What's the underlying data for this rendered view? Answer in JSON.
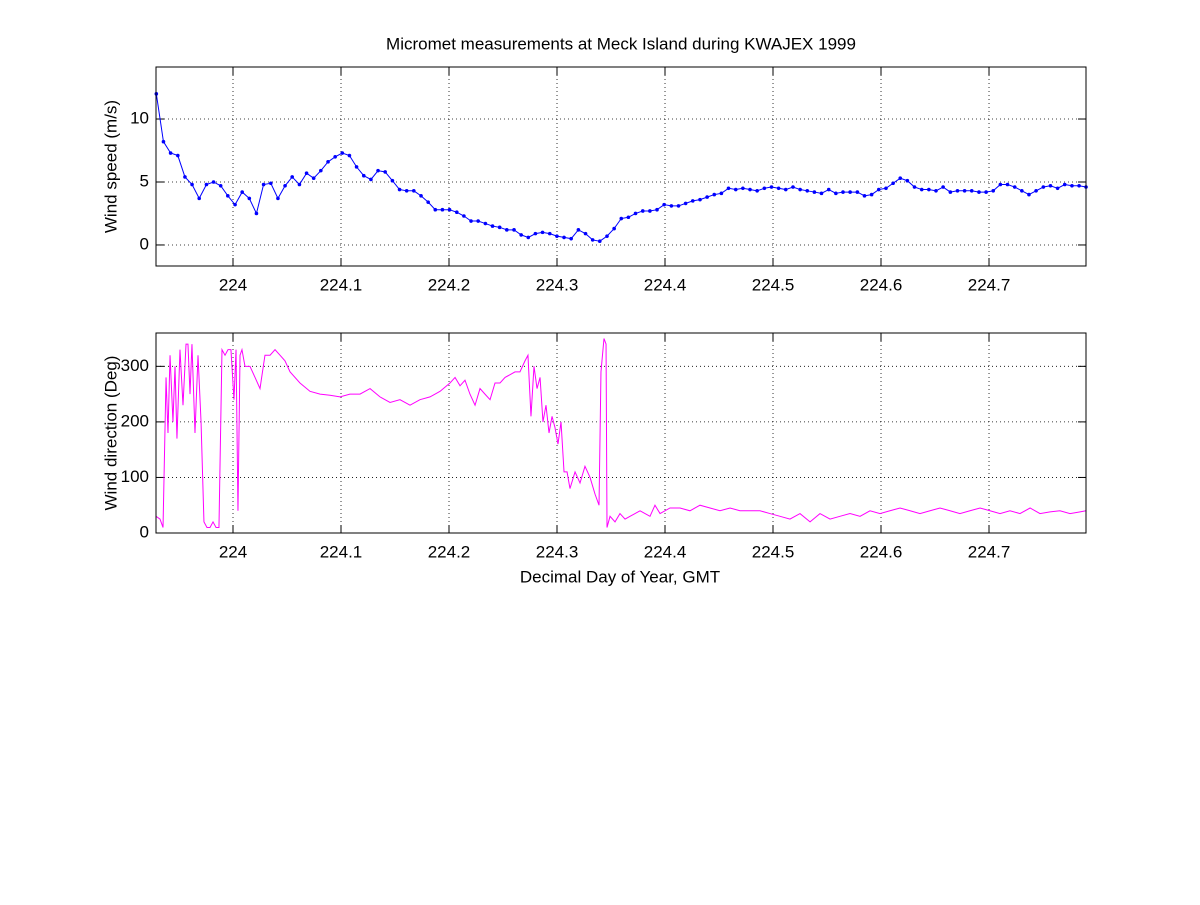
{
  "chart_data": [
    {
      "type": "line",
      "title": "Micromet measurements at Meck Island during KWAJEX 1999",
      "ylabel": "Wind speed (m/s)",
      "x": [
        223.929,
        223.9356,
        223.9422,
        223.9489,
        223.9555,
        223.9621,
        223.9687,
        223.9754,
        223.982,
        223.9886,
        223.9952,
        224.0019,
        224.0085,
        224.0151,
        224.0217,
        224.0283,
        224.035,
        224.0416,
        224.0482,
        224.0548,
        224.0615,
        224.0681,
        224.0747,
        224.0813,
        224.088,
        224.0946,
        224.1012,
        224.1078,
        224.1144,
        224.1211,
        224.1277,
        224.1343,
        224.1409,
        224.1476,
        224.1542,
        224.1608,
        224.1674,
        224.1741,
        224.1807,
        224.1873,
        224.1939,
        224.2005,
        224.2072,
        224.2138,
        224.2204,
        224.227,
        224.2337,
        224.2403,
        224.2469,
        224.2535,
        224.2602,
        224.2668,
        224.2734,
        224.28,
        224.2866,
        224.2933,
        224.2999,
        224.3065,
        224.3131,
        224.3198,
        224.3264,
        224.333,
        224.3396,
        224.3463,
        224.3529,
        224.3595,
        224.3661,
        224.3727,
        224.3794,
        224.386,
        224.3926,
        224.3992,
        224.4059,
        224.4125,
        224.4191,
        224.4257,
        224.4324,
        224.439,
        224.4456,
        224.4522,
        224.4588,
        224.4655,
        224.4721,
        224.4787,
        224.4853,
        224.492,
        224.4986,
        224.5052,
        224.5118,
        224.5185,
        224.5251,
        224.5317,
        224.5383,
        224.5449,
        224.5516,
        224.5582,
        224.5648,
        224.5714,
        224.5781,
        224.5847,
        224.5913,
        224.5979,
        224.6046,
        224.6112,
        224.6178,
        224.6244,
        224.631,
        224.6377,
        224.6443,
        224.6509,
        224.6575,
        224.6642,
        224.6708,
        224.6774,
        224.684,
        224.6907,
        224.6973,
        224.7039,
        224.7105,
        224.7171,
        224.7238,
        224.7304,
        224.737,
        224.7436,
        224.7503,
        224.7569,
        224.7635,
        224.7701,
        224.7768,
        224.7834,
        224.7898
      ],
      "values": [
        12.0,
        8.2,
        7.3,
        7.1,
        5.4,
        4.8,
        3.7,
        4.8,
        5.0,
        4.7,
        3.9,
        3.2,
        4.2,
        3.7,
        2.5,
        4.8,
        4.9,
        3.7,
        4.7,
        5.4,
        4.8,
        5.7,
        5.3,
        5.9,
        6.6,
        7.0,
        7.3,
        7.1,
        6.2,
        5.5,
        5.2,
        5.9,
        5.8,
        5.1,
        4.4,
        4.3,
        4.3,
        3.9,
        3.4,
        2.8,
        2.8,
        2.8,
        2.6,
        2.3,
        1.9,
        1.9,
        1.7,
        1.5,
        1.4,
        1.2,
        1.2,
        0.8,
        0.6,
        0.9,
        1.0,
        0.9,
        0.7,
        0.6,
        0.5,
        1.2,
        0.9,
        0.4,
        0.3,
        0.7,
        1.3,
        2.1,
        2.2,
        2.5,
        2.7,
        2.7,
        2.8,
        3.2,
        3.1,
        3.1,
        3.3,
        3.5,
        3.6,
        3.8,
        4.0,
        4.1,
        4.5,
        4.4,
        4.5,
        4.4,
        4.3,
        4.5,
        4.6,
        4.5,
        4.4,
        4.6,
        4.4,
        4.3,
        4.2,
        4.1,
        4.4,
        4.1,
        4.2,
        4.2,
        4.2,
        3.9,
        4.0,
        4.4,
        4.5,
        4.9,
        5.3,
        5.1,
        4.6,
        4.4,
        4.4,
        4.3,
        4.6,
        4.2,
        4.3,
        4.3,
        4.3,
        4.2,
        4.2,
        4.3,
        4.8,
        4.8,
        4.6,
        4.3,
        4.0,
        4.3,
        4.6,
        4.7,
        4.5,
        4.8,
        4.7,
        4.7,
        4.6
      ],
      "color": "#0000ff",
      "markers": true,
      "xlim": [
        223.9287,
        224.7898
      ],
      "ylim": [
        -1.67,
        14.13
      ],
      "xticks": [
        224,
        224.1,
        224.2,
        224.3,
        224.4,
        224.5,
        224.6,
        224.7
      ],
      "yticks": [
        0,
        5,
        10
      ],
      "grid": true
    },
    {
      "type": "line",
      "ylabel": "Wind direction (Deg)",
      "xlabel": "Decimal Day of Year, GMT",
      "x": [
        223.9287,
        223.9324,
        223.9352,
        223.938,
        223.9398,
        223.9417,
        223.9444,
        223.9463,
        223.9481,
        223.9509,
        223.9537,
        223.9565,
        223.9583,
        223.9602,
        223.962,
        223.9648,
        223.9676,
        223.9704,
        223.9731,
        223.9759,
        223.9787,
        223.9815,
        223.9843,
        223.987,
        223.9898,
        223.9926,
        223.9954,
        223.9981,
        224.0009,
        224.0028,
        224.0046,
        224.0065,
        224.0083,
        224.0111,
        224.0157,
        224.0204,
        224.025,
        224.0296,
        224.0343,
        224.0389,
        224.0435,
        224.0481,
        224.0528,
        224.062,
        224.0713,
        224.0806,
        224.0898,
        224.0991,
        224.1083,
        224.1176,
        224.1269,
        224.1361,
        224.1454,
        224.1546,
        224.1639,
        224.1731,
        224.1824,
        224.1917,
        224.2009,
        224.2056,
        224.2102,
        224.2148,
        224.2194,
        224.2241,
        224.2287,
        224.2333,
        224.238,
        224.2426,
        224.2472,
        224.2519,
        224.2565,
        224.2611,
        224.2657,
        224.2704,
        224.2731,
        224.2759,
        224.2787,
        224.2815,
        224.2843,
        224.287,
        224.2898,
        224.2926,
        224.2954,
        224.2981,
        224.3009,
        224.3037,
        224.3065,
        224.3093,
        224.312,
        224.3167,
        224.3213,
        224.3259,
        224.3306,
        224.3352,
        224.3389,
        224.3407,
        224.3435,
        224.3454,
        224.3463,
        224.3491,
        224.3537,
        224.3583,
        224.363,
        224.3676,
        224.3769,
        224.3861,
        224.3907,
        224.3954,
        224.4046,
        224.4139,
        224.4231,
        224.4324,
        224.4417,
        224.4509,
        224.4602,
        224.4694,
        224.4787,
        224.488,
        224.4972,
        224.5065,
        224.5157,
        224.525,
        224.5343,
        224.5435,
        224.5528,
        224.562,
        224.5713,
        224.5806,
        224.5898,
        224.5991,
        224.6083,
        224.6176,
        224.6269,
        224.6361,
        224.6454,
        224.6546,
        224.6639,
        224.6731,
        224.6824,
        224.6917,
        224.7009,
        224.7102,
        224.7194,
        224.7287,
        224.738,
        224.7472,
        224.7565,
        224.7657,
        224.775,
        224.7843,
        224.7898
      ],
      "values": [
        30,
        25,
        10,
        280,
        180,
        320,
        200,
        300,
        170,
        330,
        230,
        340,
        340,
        250,
        340,
        180,
        320,
        200,
        20,
        10,
        10,
        20,
        10,
        10,
        330,
        320,
        330,
        330,
        240,
        330,
        40,
        320,
        330,
        300,
        300,
        280,
        260,
        320,
        320,
        330,
        320,
        310,
        290,
        270,
        255,
        250,
        248,
        245,
        250,
        250,
        260,
        245,
        235,
        240,
        230,
        240,
        245,
        255,
        270,
        280,
        265,
        275,
        250,
        230,
        260,
        250,
        240,
        270,
        270,
        280,
        285,
        290,
        290,
        310,
        320,
        210,
        300,
        260,
        280,
        200,
        230,
        180,
        210,
        190,
        160,
        200,
        110,
        110,
        80,
        110,
        90,
        120,
        100,
        70,
        50,
        290,
        350,
        340,
        10,
        30,
        20,
        35,
        25,
        30,
        40,
        30,
        50,
        35,
        45,
        45,
        40,
        50,
        45,
        40,
        45,
        40,
        40,
        40,
        35,
        30,
        25,
        35,
        20,
        35,
        25,
        30,
        35,
        30,
        40,
        35,
        40,
        45,
        40,
        35,
        40,
        45,
        40,
        35,
        40,
        45,
        40,
        35,
        40,
        35,
        45,
        35,
        38,
        40,
        35,
        38,
        40
      ],
      "color": "#ff00ff",
      "markers": false,
      "xlim": [
        223.9287,
        224.7898
      ],
      "ylim": [
        0,
        360
      ],
      "xticks": [
        224,
        224.1,
        224.2,
        224.3,
        224.4,
        224.5,
        224.6,
        224.7
      ],
      "yticks": [
        0,
        100,
        200,
        300
      ],
      "grid": true
    }
  ]
}
